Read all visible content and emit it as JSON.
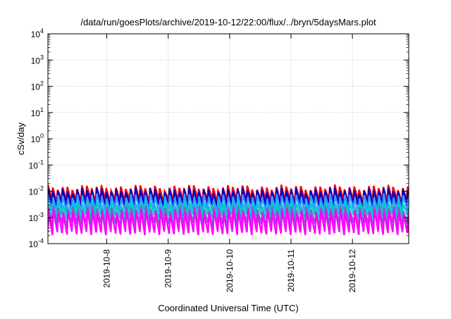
{
  "chart_data": {
    "type": "line",
    "title": "/data/run/goesPlots/archive/2019-10-12/22:00/flux/../bryn/5daysMars.plot",
    "xlabel": "Coordinated Universal Time (UTC)",
    "ylabel": "cSv/day",
    "yscale": "log",
    "ylim": [
      0.0001,
      10000
    ],
    "xlim": [
      "2019-10-07T01:00",
      "2019-10-12T22:00"
    ],
    "grid": true,
    "legend": "none",
    "ytick_labels": [
      {
        "base": "10",
        "exp": "-4",
        "value": 0.0001
      },
      {
        "base": "10",
        "exp": "-3",
        "value": 0.001
      },
      {
        "base": "10",
        "exp": "-2",
        "value": 0.01
      },
      {
        "base": "10",
        "exp": "-1",
        "value": 0.1
      },
      {
        "base": "10",
        "exp": "0",
        "value": 1
      },
      {
        "base": "10",
        "exp": "1",
        "value": 10
      },
      {
        "base": "10",
        "exp": "2",
        "value": 100
      },
      {
        "base": "10",
        "exp": "3",
        "value": 1000
      },
      {
        "base": "10",
        "exp": "4",
        "value": 10000
      }
    ],
    "xtick_labels": [
      "2019-10-8",
      "2019-10-9",
      "2019-10-10",
      "2019-10-11",
      "2019-10-12"
    ],
    "xtick_values": [
      "2019-10-08T00:00",
      "2019-10-09T00:00",
      "2019-10-10T00:00",
      "2019-10-11T00:00",
      "2019-10-12T00:00"
    ],
    "sawtooth_period_hours": 1.9,
    "series": [
      {
        "color": "#ff0000",
        "min": 0.0045,
        "peak": 0.014
      },
      {
        "color": "#0000cc",
        "min": 0.003,
        "peak": 0.011
      },
      {
        "color": "#3399ff",
        "min": 0.0018,
        "peak": 0.0065
      },
      {
        "color": "#00cccc",
        "min": 0.0011,
        "peak": 0.0035
      },
      {
        "color": "#7766cc",
        "min": 0.00055,
        "peak": 0.0023
      },
      {
        "color": "#ff00ff",
        "min": 0.00025,
        "peak": 0.0017
      }
    ]
  }
}
